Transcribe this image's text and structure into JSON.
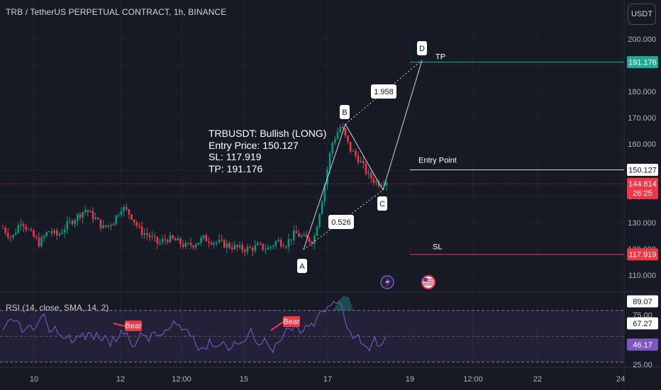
{
  "header": {
    "title": "TRB / TetherUS PERPETUAL CONTRACT, 1h, BINANCE"
  },
  "currency_button": "USDT",
  "info_box": {
    "line1": "TRBUSDT: Bullish (LONG)",
    "line2": "Entry Price: 150.127",
    "line3": "SL: 117.919",
    "line4": "TP: 191.176"
  },
  "rsi": {
    "title": "RSI (14, close, SMA, 14, 2)",
    "levels": [
      {
        "label": "89.07",
        "kind": "white"
      },
      {
        "label": "75.00",
        "kind": "axis"
      },
      {
        "label": "67.27",
        "kind": "white"
      },
      {
        "label": "46.17",
        "kind": "purple"
      },
      {
        "label": "25.00",
        "kind": "axis"
      }
    ],
    "bear_label": "Bear"
  },
  "chart_data": [
    {
      "type": "candlestick",
      "title": "TRB / TetherUS PERPETUAL CONTRACT, 1h, BINANCE",
      "y_ticks": [
        110,
        120,
        130,
        140,
        150,
        160,
        170,
        180,
        190,
        200
      ],
      "y_tick_labels": [
        "110.000",
        "120.000",
        "130.000",
        "140.000",
        "150.000",
        "160.000",
        "170.000",
        "180.000",
        "190.000",
        "200.000"
      ],
      "x_tick_labels": [
        "10",
        "12",
        "12:00",
        "15",
        "17",
        "19",
        "12:00",
        "22",
        "24"
      ],
      "levels": [
        {
          "name": "TP",
          "value": 191.176,
          "label": "191.176",
          "color": "#22ab94"
        },
        {
          "name": "Entry Point",
          "value": 150.127,
          "label": "150.127",
          "color": "#ffffff"
        },
        {
          "name": "Current",
          "value": 144.814,
          "label": "144.814",
          "countdown": "26:25",
          "color": "#f23645"
        },
        {
          "name": "SL",
          "value": 117.919,
          "label": "117.919",
          "color": "#f23645"
        }
      ],
      "pattern": {
        "points": [
          "A",
          "B",
          "C",
          "D"
        ],
        "ratios": [
          "0.526",
          "1.958"
        ]
      },
      "price_path_approx": [
        128,
        124,
        131,
        126,
        122,
        127,
        125,
        129,
        132,
        135,
        132,
        128,
        130,
        136,
        133,
        127,
        125,
        122,
        124,
        123,
        121,
        122,
        124,
        123,
        122,
        121,
        120,
        120,
        121,
        120,
        123,
        122,
        126,
        124,
        123,
        140,
        160,
        167,
        158,
        154,
        148,
        145,
        146
      ]
    }
  ],
  "colors": {
    "background": "#161a25",
    "up": "#089981",
    "down": "#f23645",
    "tp_green": "#22ab94",
    "sl_red": "#f23645",
    "rsi_line": "#7e57c2"
  }
}
